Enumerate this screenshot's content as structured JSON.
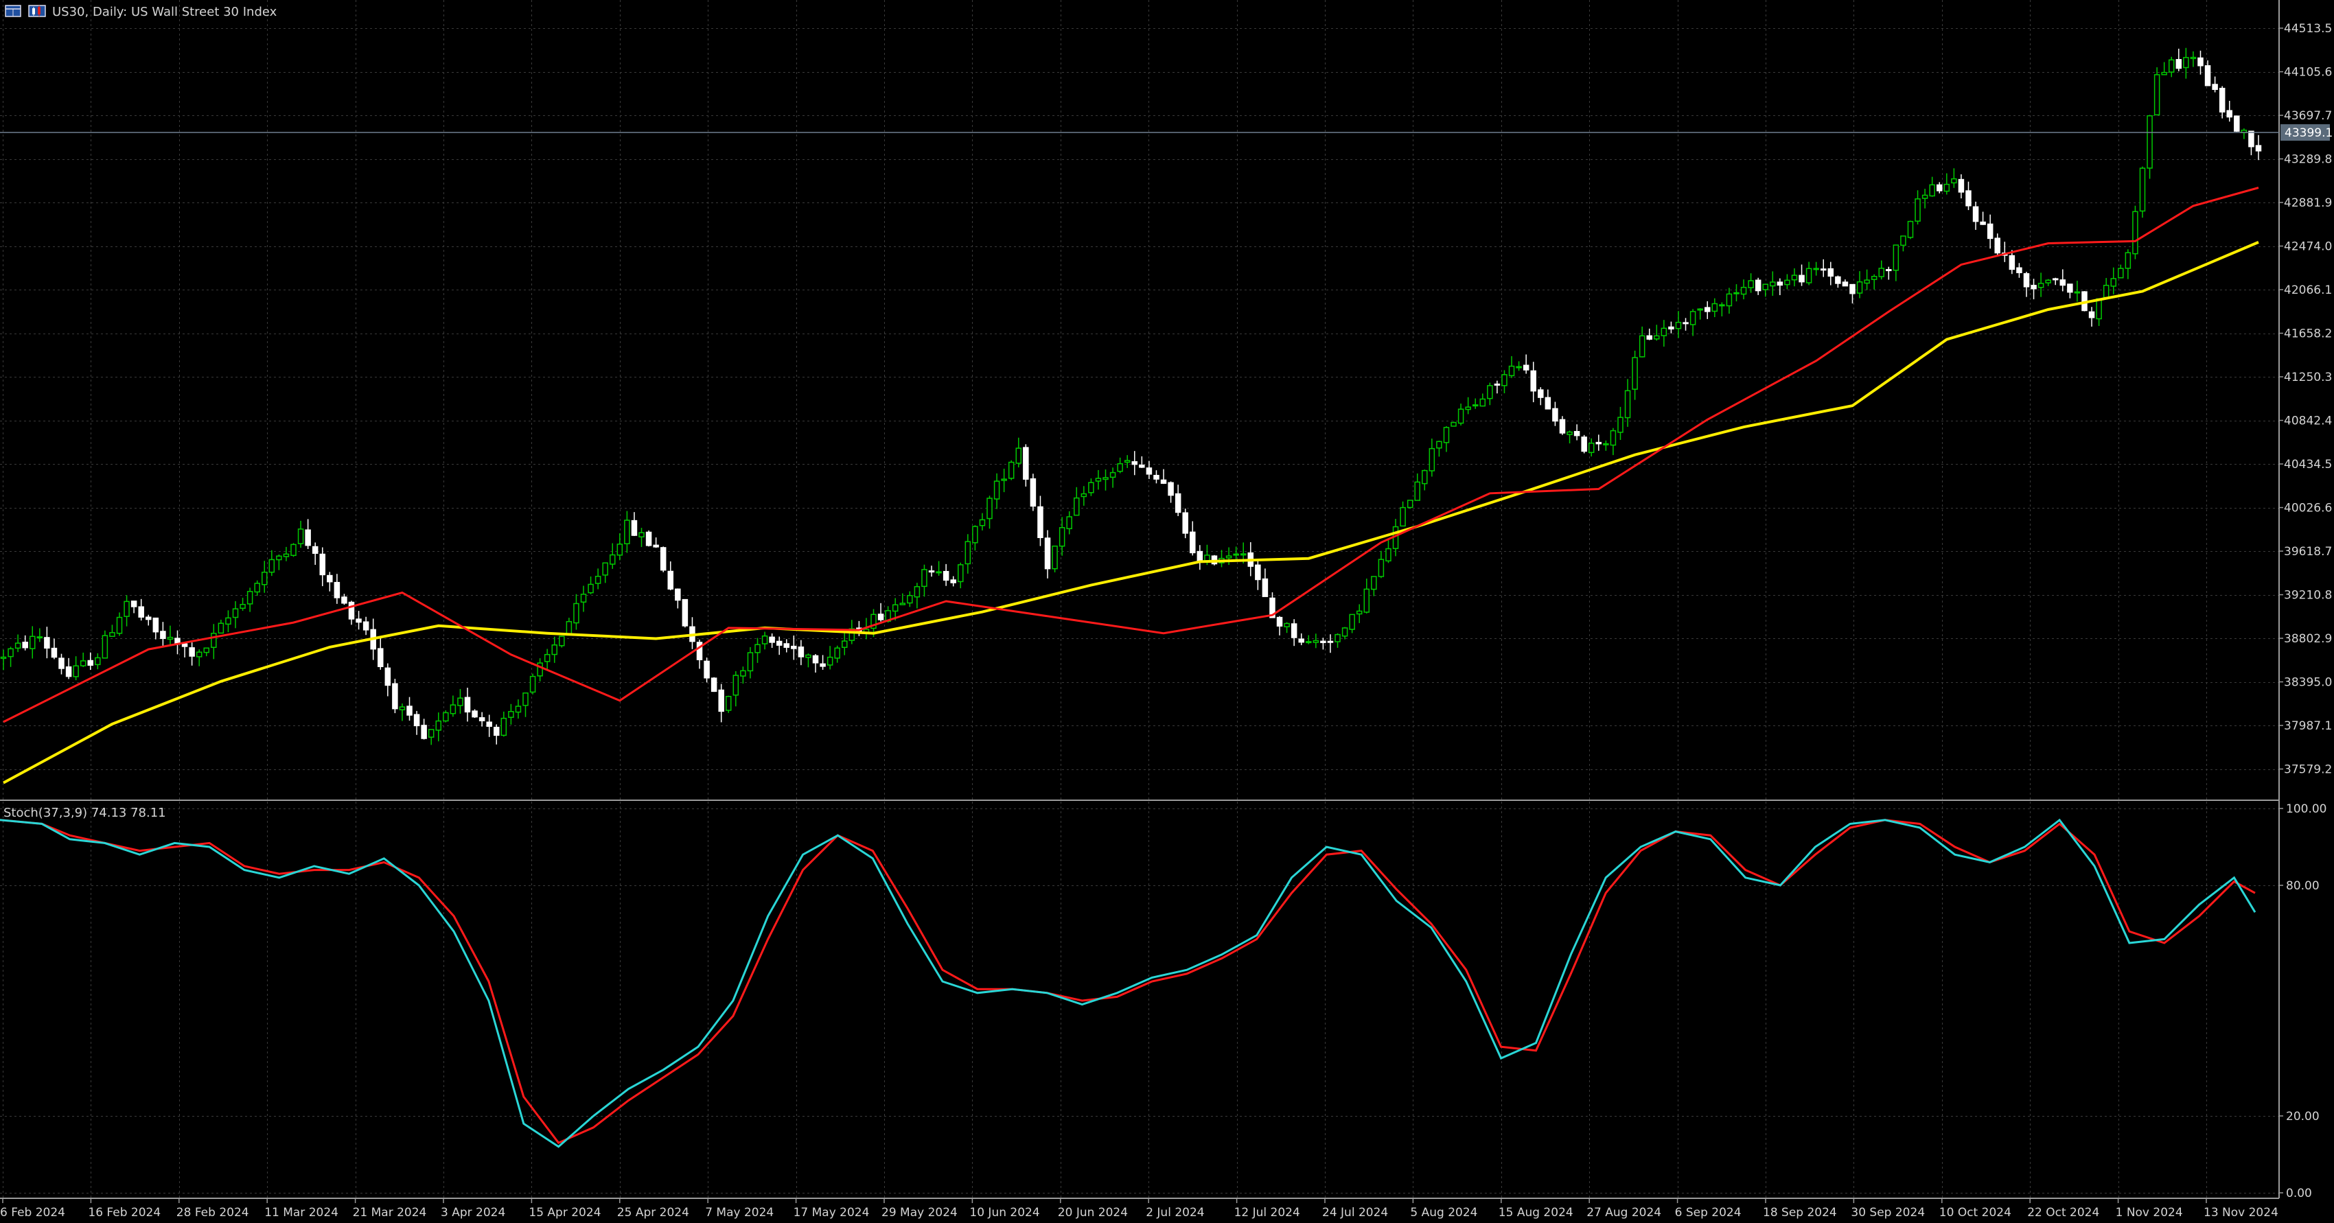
{
  "window": {
    "title": "US30, Daily:  US Wall Street 30 Index",
    "icons": [
      "chart-window-icon",
      "candlestick-icon"
    ]
  },
  "price_badge": "43399.1",
  "colors": {
    "background": "#000000",
    "grid": "#3a3a3a",
    "bull_candle": "#00c800",
    "bear_candle": "#ffffff",
    "ma_fast": "#ff1a1a",
    "ma_slow": "#ffee00",
    "stoch_main": "#2ad6d6",
    "stoch_signal": "#ff1a1a",
    "axis_text": "#d4d4d4"
  },
  "chart_data": [
    {
      "type": "candlestick",
      "title": "US30, Daily:  US Wall Street 30 Index",
      "ylim": [
        37300,
        44700
      ],
      "y_ticks": [
        "44513.5",
        "44105.6",
        "43697.7",
        "43289.8",
        "42881.9",
        "42474.0",
        "42066.1",
        "41658.2",
        "41250.3",
        "40842.4",
        "40434.5",
        "40026.6",
        "39618.7",
        "39210.8",
        "38802.9",
        "38395.0",
        "37987.1",
        "37579.2"
      ],
      "x_ticks": [
        "6 Feb 2024",
        "16 Feb 2024",
        "28 Feb 2024",
        "11 Mar 2024",
        "21 Mar 2024",
        "3 Apr 2024",
        "15 Apr 2024",
        "25 Apr 2024",
        "7 May 2024",
        "17 May 2024",
        "29 May 2024",
        "10 Jun 2024",
        "20 Jun 2024",
        "2 Jul 2024",
        "12 Jul 2024",
        "24 Jul 2024",
        "5 Aug 2024",
        "15 Aug 2024",
        "27 Aug 2024",
        "6 Sep 2024",
        "18 Sep 2024",
        "30 Sep 2024",
        "10 Oct 2024",
        "22 Oct 2024",
        "1 Nov 2024",
        "13 Nov 2024"
      ],
      "current_price": 43399.1,
      "close_path": [
        [
          0,
          38650
        ],
        [
          5,
          38820
        ],
        [
          9,
          38450
        ],
        [
          13,
          38650
        ],
        [
          17,
          39150
        ],
        [
          21,
          38850
        ],
        [
          27,
          38630
        ],
        [
          32,
          39080
        ],
        [
          37,
          39500
        ],
        [
          41,
          39800
        ],
        [
          46,
          39180
        ],
        [
          50,
          38900
        ],
        [
          54,
          38200
        ],
        [
          58,
          37850
        ],
        [
          63,
          38200
        ],
        [
          68,
          37950
        ],
        [
          72,
          38300
        ],
        [
          77,
          38850
        ],
        [
          82,
          39400
        ],
        [
          86,
          39850
        ],
        [
          90,
          39650
        ],
        [
          95,
          38750
        ],
        [
          99,
          38170
        ],
        [
          104,
          38800
        ],
        [
          109,
          38700
        ],
        [
          113,
          38600
        ],
        [
          118,
          38900
        ],
        [
          123,
          39120
        ],
        [
          127,
          39400
        ],
        [
          131,
          39380
        ],
        [
          136,
          40100
        ],
        [
          140,
          40600
        ],
        [
          144,
          39500
        ],
        [
          149,
          40200
        ],
        [
          155,
          40450
        ],
        [
          160,
          40250
        ],
        [
          165,
          39500
        ],
        [
          171,
          39650
        ],
        [
          175,
          39000
        ],
        [
          180,
          38750
        ],
        [
          185,
          38850
        ],
        [
          190,
          39500
        ],
        [
          195,
          40300
        ],
        [
          199,
          40800
        ],
        [
          204,
          41050
        ],
        [
          209,
          41400
        ],
        [
          214,
          40800
        ],
        [
          218,
          40600
        ],
        [
          222,
          40700
        ],
        [
          226,
          41600
        ],
        [
          231,
          41750
        ],
        [
          236,
          41950
        ],
        [
          241,
          42100
        ],
        [
          246,
          42150
        ],
        [
          251,
          42250
        ],
        [
          255,
          42050
        ],
        [
          260,
          42300
        ],
        [
          265,
          43000
        ],
        [
          269,
          43050
        ],
        [
          274,
          42550
        ],
        [
          279,
          42100
        ],
        [
          283,
          42200
        ],
        [
          288,
          41850
        ],
        [
          293,
          42400
        ],
        [
          297,
          44100
        ],
        [
          302,
          44250
        ],
        [
          307,
          43650
        ],
        [
          311,
          43399
        ]
      ],
      "series": [
        {
          "name": "",
          "values": [
            [
              0,
              38020
            ],
            [
              20,
              38700
            ],
            [
              40,
              38950
            ],
            [
              55,
              39230
            ],
            [
              70,
              38650
            ],
            [
              85,
              38220
            ],
            [
              100,
              38900
            ],
            [
              118,
              38880
            ],
            [
              130,
              39150
            ],
            [
              145,
              39000
            ],
            [
              160,
              38850
            ],
            [
              175,
              39020
            ],
            [
              190,
              39700
            ],
            [
              205,
              40160
            ],
            [
              220,
              40200
            ],
            [
              235,
              40850
            ],
            [
              250,
              41400
            ],
            [
              260,
              41860
            ],
            [
              270,
              42300
            ],
            [
              282,
              42500
            ],
            [
              294,
              42520
            ],
            [
              302,
              42850
            ],
            [
              311,
              43020
            ]
          ]
        },
        {
          "name": "",
          "values": [
            [
              0,
              37450
            ],
            [
              15,
              38000
            ],
            [
              30,
              38400
            ],
            [
              45,
              38720
            ],
            [
              60,
              38920
            ],
            [
              75,
              38850
            ],
            [
              90,
              38800
            ],
            [
              105,
              38900
            ],
            [
              120,
              38850
            ],
            [
              135,
              39050
            ],
            [
              150,
              39300
            ],
            [
              165,
              39520
            ],
            [
              180,
              39550
            ],
            [
              195,
              39850
            ],
            [
              210,
              40180
            ],
            [
              225,
              40520
            ],
            [
              240,
              40780
            ],
            [
              255,
              40980
            ],
            [
              268,
              41600
            ],
            [
              282,
              41880
            ],
            [
              295,
              42050
            ],
            [
              311,
              42510
            ]
          ]
        }
      ]
    },
    {
      "type": "line",
      "title": "Stoch(37,3,9) 74.13 78.11",
      "ylim": [
        0,
        100
      ],
      "y_ticks": [
        "100.00",
        "80.00",
        "20.00",
        "0.00"
      ],
      "series": [
        {
          "name": "",
          "values": [
            [
              0,
              97
            ],
            [
              6,
              96
            ],
            [
              10,
              92
            ],
            [
              15,
              91
            ],
            [
              20,
              88
            ],
            [
              25,
              91
            ],
            [
              30,
              90
            ],
            [
              35,
              84
            ],
            [
              40,
              82
            ],
            [
              45,
              85
            ],
            [
              50,
              83
            ],
            [
              55,
              87
            ],
            [
              60,
              80
            ],
            [
              65,
              68
            ],
            [
              70,
              50
            ],
            [
              75,
              18
            ],
            [
              80,
              12
            ],
            [
              85,
              20
            ],
            [
              90,
              27
            ],
            [
              95,
              32
            ],
            [
              100,
              38
            ],
            [
              105,
              50
            ],
            [
              110,
              72
            ],
            [
              115,
              88
            ],
            [
              120,
              93
            ],
            [
              125,
              87
            ],
            [
              130,
              70
            ],
            [
              135,
              55
            ],
            [
              140,
              52
            ],
            [
              145,
              53
            ],
            [
              150,
              52
            ],
            [
              155,
              49
            ],
            [
              160,
              52
            ],
            [
              165,
              56
            ],
            [
              170,
              58
            ],
            [
              175,
              62
            ],
            [
              180,
              67
            ],
            [
              185,
              82
            ],
            [
              190,
              90
            ],
            [
              195,
              88
            ],
            [
              200,
              76
            ],
            [
              205,
              69
            ],
            [
              210,
              55
            ],
            [
              215,
              35
            ],
            [
              220,
              39
            ],
            [
              225,
              62
            ],
            [
              230,
              82
            ],
            [
              235,
              90
            ],
            [
              240,
              94
            ],
            [
              245,
              92
            ],
            [
              250,
              82
            ],
            [
              255,
              80
            ],
            [
              260,
              90
            ],
            [
              265,
              96
            ],
            [
              270,
              97
            ],
            [
              275,
              95
            ],
            [
              280,
              88
            ],
            [
              285,
              86
            ],
            [
              290,
              90
            ],
            [
              295,
              97
            ],
            [
              300,
              85
            ],
            [
              305,
              65
            ],
            [
              310,
              66
            ],
            [
              315,
              75
            ],
            [
              320,
              82
            ],
            [
              323,
              73
            ]
          ]
        },
        {
          "name": "",
          "values": [
            [
              0,
              97
            ],
            [
              6,
              96
            ],
            [
              10,
              93
            ],
            [
              15,
              91
            ],
            [
              20,
              89
            ],
            [
              25,
              90
            ],
            [
              30,
              91
            ],
            [
              35,
              85
            ],
            [
              40,
              83
            ],
            [
              45,
              84
            ],
            [
              50,
              84
            ],
            [
              55,
              86
            ],
            [
              60,
              82
            ],
            [
              65,
              72
            ],
            [
              70,
              55
            ],
            [
              75,
              25
            ],
            [
              80,
              13
            ],
            [
              85,
              17
            ],
            [
              90,
              24
            ],
            [
              95,
              30
            ],
            [
              100,
              36
            ],
            [
              105,
              46
            ],
            [
              110,
              66
            ],
            [
              115,
              84
            ],
            [
              120,
              93
            ],
            [
              125,
              89
            ],
            [
              130,
              74
            ],
            [
              135,
              58
            ],
            [
              140,
              53
            ],
            [
              145,
              53
            ],
            [
              150,
              52
            ],
            [
              155,
              50
            ],
            [
              160,
              51
            ],
            [
              165,
              55
            ],
            [
              170,
              57
            ],
            [
              175,
              61
            ],
            [
              180,
              66
            ],
            [
              185,
              78
            ],
            [
              190,
              88
            ],
            [
              195,
              89
            ],
            [
              200,
              79
            ],
            [
              205,
              70
            ],
            [
              210,
              58
            ],
            [
              215,
              38
            ],
            [
              220,
              37
            ],
            [
              225,
              57
            ],
            [
              230,
              78
            ],
            [
              235,
              89
            ],
            [
              240,
              94
            ],
            [
              245,
              93
            ],
            [
              250,
              84
            ],
            [
              255,
              80
            ],
            [
              260,
              88
            ],
            [
              265,
              95
            ],
            [
              270,
              97
            ],
            [
              275,
              96
            ],
            [
              280,
              90
            ],
            [
              285,
              86
            ],
            [
              290,
              89
            ],
            [
              295,
              96
            ],
            [
              300,
              88
            ],
            [
              305,
              68
            ],
            [
              310,
              65
            ],
            [
              315,
              72
            ],
            [
              320,
              81
            ],
            [
              323,
              78
            ]
          ]
        }
      ]
    }
  ]
}
